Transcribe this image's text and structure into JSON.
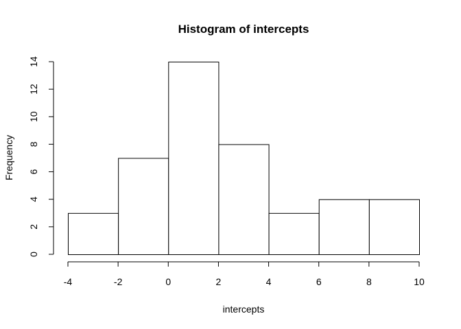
{
  "chart_data": {
    "type": "bar",
    "title": "Histogram of intercepts",
    "xlabel": "intercepts",
    "ylabel": "Frequency",
    "bins": [
      {
        "from": -4,
        "to": -2,
        "count": 3
      },
      {
        "from": -2,
        "to": 0,
        "count": 7
      },
      {
        "from": 0,
        "to": 2,
        "count": 14
      },
      {
        "from": 2,
        "to": 4,
        "count": 8
      },
      {
        "from": 4,
        "to": 6,
        "count": 3
      },
      {
        "from": 6,
        "to": 8,
        "count": 4
      },
      {
        "from": 8,
        "to": 10,
        "count": 4
      }
    ],
    "xlim": [
      -4,
      10
    ],
    "ylim": [
      0,
      14
    ],
    "x_ticks": [
      -4,
      -2,
      0,
      2,
      4,
      6,
      8,
      10
    ],
    "y_ticks": [
      0,
      2,
      4,
      6,
      8,
      10,
      12,
      14
    ],
    "bar_fill": "#ffffff",
    "bar_stroke": "#000000",
    "grid": false,
    "legend": "none"
  }
}
